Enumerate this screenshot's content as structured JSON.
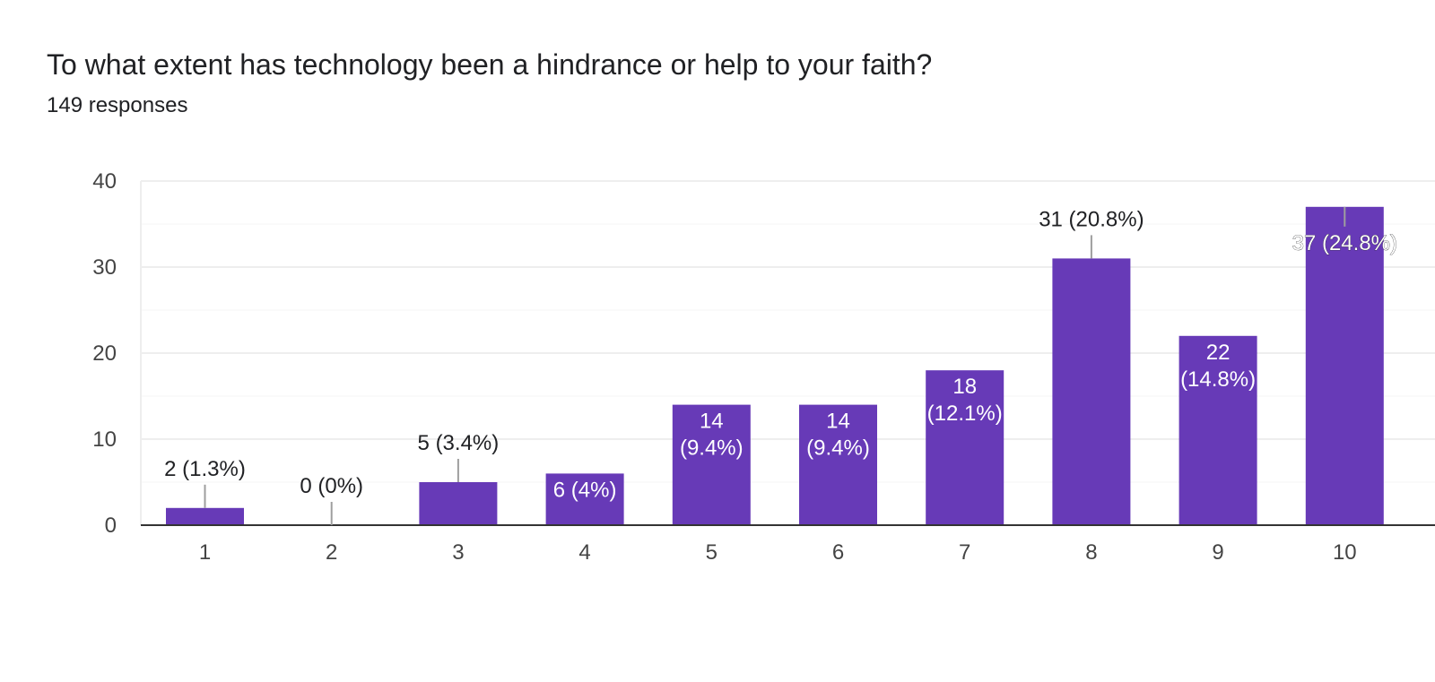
{
  "header": {
    "title": "To what extent has technology been a hindrance or help to your faith?",
    "responses": "149 responses"
  },
  "colors": {
    "bar": "#673ab7",
    "grid": "#eeeeee",
    "axis": "#333333",
    "leader": "#9e9e9e"
  },
  "chart_data": {
    "type": "bar",
    "categories": [
      "1",
      "2",
      "3",
      "4",
      "5",
      "6",
      "7",
      "8",
      "9",
      "10"
    ],
    "values": [
      2,
      0,
      5,
      6,
      14,
      14,
      18,
      31,
      22,
      37
    ],
    "data_labels": [
      "2 (1.3%)",
      "0 (0%)",
      "5 (3.4%)",
      "6 (4%)",
      "14 (9.4%)",
      "14 (9.4%)",
      "18 (12.1%)",
      "31 (20.8%)",
      "22 (14.8%)",
      "37 (24.8%)"
    ],
    "yticks": [
      "0",
      "10",
      "20",
      "30",
      "40"
    ],
    "ylim": [
      0,
      40
    ],
    "grid": true
  }
}
